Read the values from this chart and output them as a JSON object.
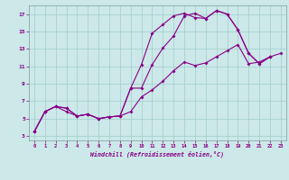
{
  "xlabel": "Windchill (Refroidissement éolien,°C)",
  "xlim": [
    -0.5,
    23.5
  ],
  "ylim": [
    2.5,
    18.0
  ],
  "xticks": [
    0,
    1,
    2,
    3,
    4,
    5,
    6,
    7,
    8,
    9,
    10,
    11,
    12,
    13,
    14,
    15,
    16,
    17,
    18,
    19,
    20,
    21,
    22,
    23
  ],
  "yticks": [
    3,
    5,
    7,
    9,
    11,
    13,
    15,
    17
  ],
  "bg_color": "#cce8e8",
  "grid_color": "#9fcece",
  "line_color": "#880088",
  "line1_x": [
    0,
    1,
    2,
    3,
    4,
    5,
    6,
    7,
    8,
    9,
    10,
    11,
    12,
    13,
    14,
    15,
    16,
    17,
    18,
    19,
    20,
    21,
    22
  ],
  "line1_y": [
    3.5,
    5.8,
    6.4,
    5.8,
    5.3,
    5.5,
    5.0,
    5.2,
    5.3,
    8.5,
    11.2,
    14.8,
    15.8,
    16.8,
    17.1,
    16.6,
    16.5,
    17.4,
    17.0,
    15.2,
    12.5,
    11.3,
    12.1
  ],
  "line2_x": [
    0,
    1,
    2,
    3,
    4,
    5,
    6,
    7,
    8,
    9,
    10,
    11,
    12,
    13,
    14,
    15,
    16,
    17,
    18,
    19,
    20,
    21,
    22
  ],
  "line2_y": [
    3.5,
    5.8,
    6.4,
    6.2,
    5.3,
    5.5,
    5.0,
    5.2,
    5.3,
    8.5,
    8.5,
    11.2,
    13.1,
    14.5,
    16.8,
    17.1,
    16.5,
    17.4,
    17.0,
    15.2,
    12.5,
    11.3,
    12.1
  ],
  "line3_x": [
    0,
    1,
    2,
    3,
    4,
    5,
    6,
    7,
    8,
    9,
    10,
    11,
    12,
    13,
    14,
    15,
    16,
    17,
    18,
    19,
    20,
    21,
    22,
    23
  ],
  "line3_y": [
    3.5,
    5.8,
    6.4,
    6.2,
    5.3,
    5.5,
    5.0,
    5.2,
    5.3,
    5.8,
    7.5,
    8.3,
    9.3,
    10.5,
    11.5,
    11.1,
    11.4,
    12.1,
    12.8,
    13.5,
    11.3,
    11.5,
    12.1,
    12.5
  ]
}
